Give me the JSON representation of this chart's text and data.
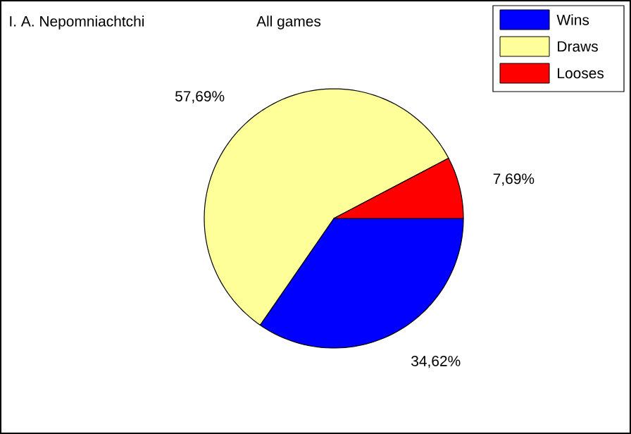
{
  "chart_data": {
    "type": "pie",
    "title": "All games",
    "annotations": [
      "I. A. Nepomniachtchi"
    ],
    "categories": [
      "Wins",
      "Draws",
      "Looses"
    ],
    "values": [
      34.62,
      57.69,
      7.69
    ],
    "value_labels": [
      "34,62%",
      "57,69%",
      "7,69%"
    ],
    "colors": [
      "#0000ff",
      "#ffff99",
      "#ff0000"
    ],
    "legend": "top right"
  }
}
